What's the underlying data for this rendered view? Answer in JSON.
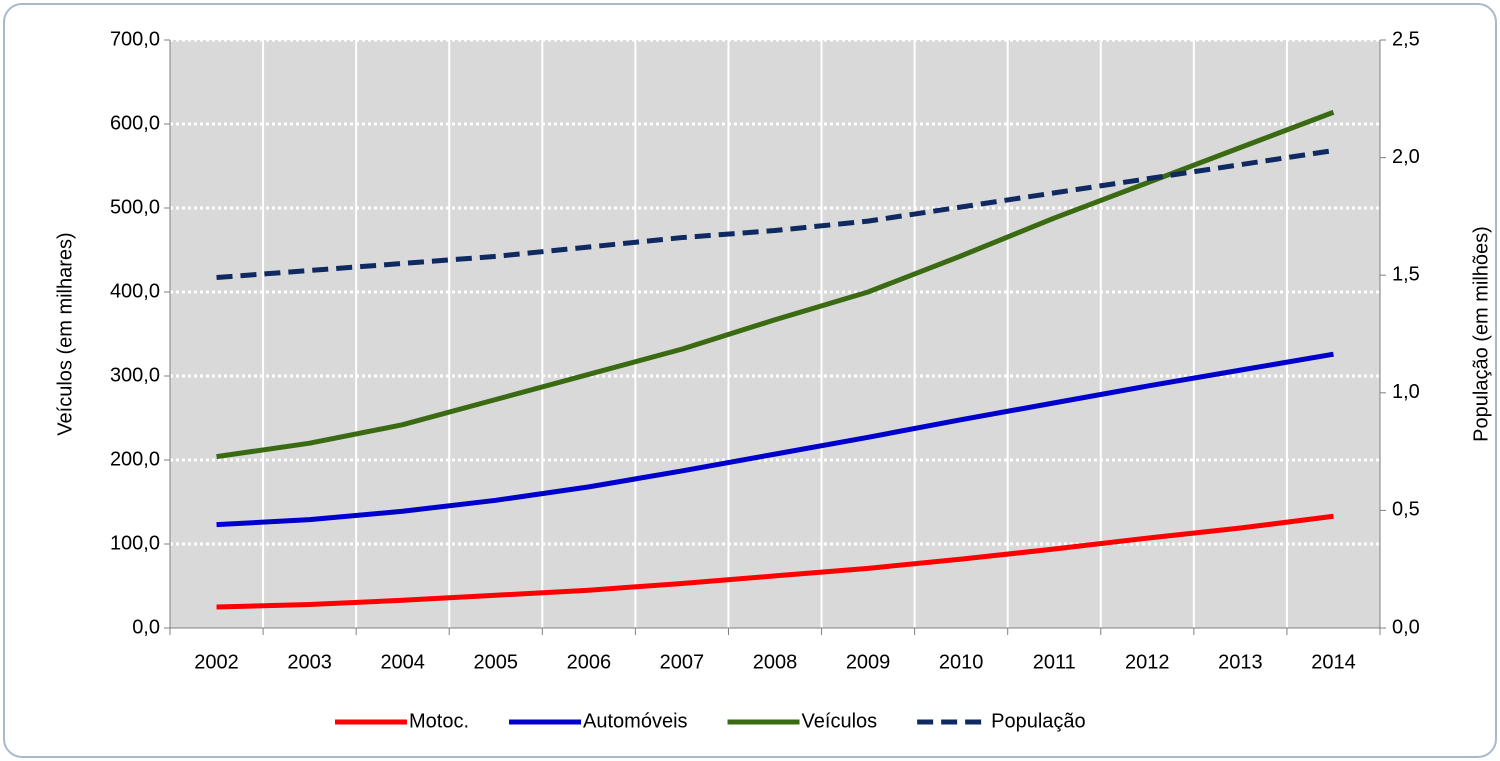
{
  "chart_data": {
    "type": "line",
    "y_label": "Veículos (em milhares)",
    "y2_label": "População (em milhões)",
    "categories": [
      "2002",
      "2003",
      "2004",
      "2005",
      "2006",
      "2007",
      "2008",
      "2009",
      "2010",
      "2011",
      "2012",
      "2013",
      "2014"
    ],
    "series": [
      {
        "name": "Motoc.",
        "color": "#ff0000",
        "values": [
          25,
          28,
          33,
          39,
          45,
          53,
          62,
          71,
          82,
          94,
          107,
          119,
          133
        ]
      },
      {
        "name": "Automóveis",
        "color": "#0000cc",
        "values": [
          123,
          129,
          139,
          152,
          168,
          187,
          207,
          227,
          248,
          268,
          288,
          307,
          326
        ]
      },
      {
        "name": "Veículos",
        "color": "#3a6b12",
        "values": [
          204,
          220,
          242,
          272,
          302,
          332,
          367,
          400,
          443,
          488,
          530,
          572,
          614
        ]
      },
      {
        "name": "População",
        "color": "#0f2a60",
        "dashed": true,
        "axis": "y2",
        "values": [
          1.49,
          1.52,
          1.55,
          1.58,
          1.62,
          1.66,
          1.69,
          1.73,
          1.79,
          1.85,
          1.91,
          1.97,
          2.03
        ]
      }
    ],
    "ylim": [
      0,
      700
    ],
    "yticks": [
      {
        "value": 0,
        "label": "0,0"
      },
      {
        "value": 100,
        "label": "100,0"
      },
      {
        "value": 200,
        "label": "200,0"
      },
      {
        "value": 300,
        "label": "300,0"
      },
      {
        "value": 400,
        "label": "400,0"
      },
      {
        "value": 500,
        "label": "500,0"
      },
      {
        "value": 600,
        "label": "600,0"
      },
      {
        "value": 700,
        "label": "700,0"
      }
    ],
    "y2lim": [
      0,
      2.5
    ],
    "y2ticks": [
      {
        "value": 0,
        "label": "0,0"
      },
      {
        "value": 0.5,
        "label": "0,5"
      },
      {
        "value": 1,
        "label": "1,0"
      },
      {
        "value": 1.5,
        "label": "1,5"
      },
      {
        "value": 2,
        "label": "2,0"
      },
      {
        "value": 2.5,
        "label": "2,5"
      }
    ],
    "grid": true,
    "legend": "bottom"
  }
}
